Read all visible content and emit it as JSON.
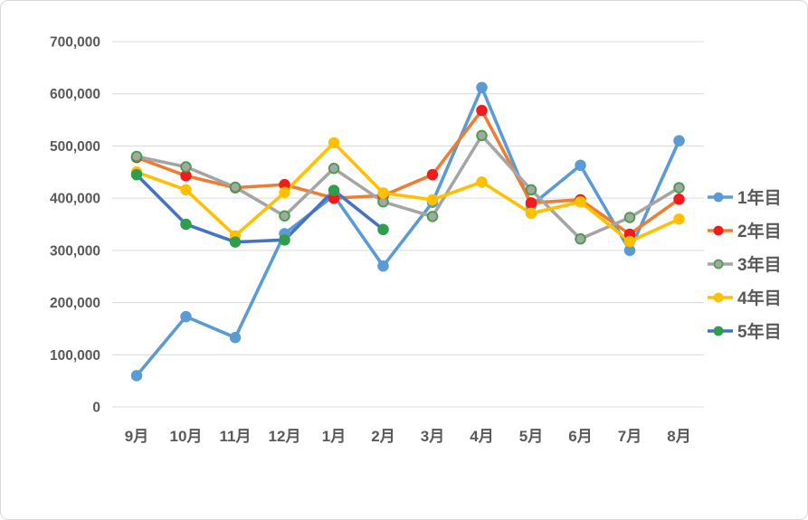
{
  "chart_data": {
    "type": "line",
    "title": "",
    "xlabel": "",
    "ylabel": "",
    "categories": [
      "9月",
      "10月",
      "11月",
      "12月",
      "1月",
      "2月",
      "3月",
      "4月",
      "5月",
      "6月",
      "7月",
      "8月"
    ],
    "series": [
      {
        "name": "1年目",
        "line_color": "#5B9BD5",
        "marker_fill": "#5B9BD5",
        "marker_border": "#5B9BD5",
        "values": [
          60000,
          173000,
          133000,
          332000,
          405000,
          270000,
          392000,
          612000,
          386000,
          463000,
          300000,
          510000
        ]
      },
      {
        "name": "2年目",
        "line_color": "#ED7D31",
        "marker_fill": "#F21B1B",
        "marker_border": "#F21B1B",
        "values": [
          478000,
          443000,
          420000,
          426000,
          400000,
          405000,
          445000,
          568000,
          391000,
          397000,
          331000,
          398000
        ]
      },
      {
        "name": "3年目",
        "line_color": "#A5A5A5",
        "marker_fill": "#A6A6A6",
        "marker_border": "#43A047",
        "values": [
          480000,
          460000,
          421000,
          366000,
          457000,
          393000,
          365000,
          520000,
          416000,
          322000,
          363000,
          420000
        ]
      },
      {
        "name": "4年目",
        "line_color": "#FFC000",
        "marker_fill": "#FFC000",
        "marker_border": "#FFC000",
        "values": [
          450000,
          416000,
          328000,
          411000,
          506000,
          410000,
          397000,
          431000,
          371000,
          393000,
          317000,
          360000
        ]
      },
      {
        "name": "5年目",
        "line_color": "#4472C4",
        "marker_fill": "#2E9E4C",
        "marker_border": "#2E9E4C",
        "values": [
          445000,
          350000,
          316000,
          320000,
          415000,
          340000
        ]
      }
    ],
    "ylim": [
      0,
      700000
    ],
    "y_tick_step": 100000,
    "y_tick_labels": [
      "0",
      "100,000",
      "200,000",
      "300,000",
      "400,000",
      "500,000",
      "600,000",
      "700,000"
    ],
    "grid": "horizontal",
    "legend_position": "right",
    "colors": {
      "axis_text": "#595959",
      "gridline": "#D9D9D9",
      "chart_border": "#D9D9D9",
      "background": "#FFFFFF"
    }
  }
}
